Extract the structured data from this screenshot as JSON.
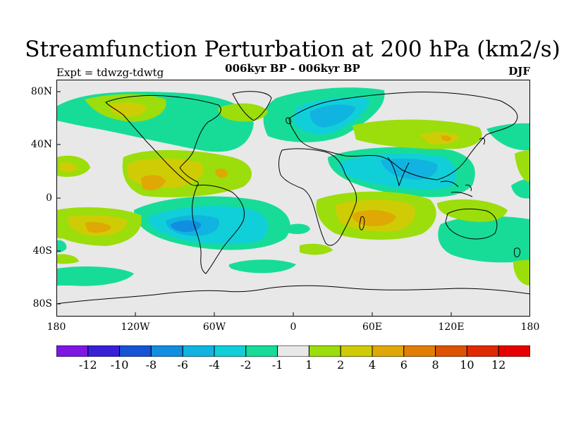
{
  "title": "Streamfunction Perturbation at 200 hPa (km2/s)",
  "subtitle": "006kyr BP - 006kyr BP",
  "left_label": "Expt = tdwzg-tdwtg",
  "right_label": "DJF",
  "map": {
    "projection": "cylindrical-equidistant",
    "background_color": "#e8e8e8",
    "lat_range": [
      -90,
      90
    ],
    "lon_range": [
      -180,
      180
    ],
    "lat_ticks": [
      "80N",
      "40N",
      "0",
      "40S",
      "80S"
    ],
    "lon_ticks": [
      "180",
      "120W",
      "60W",
      "0",
      "60E",
      "120E",
      "180"
    ]
  },
  "colorbar": {
    "labels": [
      "-12",
      "-10",
      "-8",
      "-6",
      "-4",
      "-2",
      "-1",
      "1",
      "2",
      "4",
      "6",
      "8",
      "10",
      "12"
    ],
    "colors": [
      "#7e17e3",
      "#3a1fd8",
      "#1654d6",
      "#118ee0",
      "#11b4e0",
      "#11cfd8",
      "#17dc98",
      "#e8e8e8",
      "#9cdd0c",
      "#cfcc05",
      "#dfa804",
      "#e27e04",
      "#de5203",
      "#e02a03",
      "#e60000"
    ]
  }
}
